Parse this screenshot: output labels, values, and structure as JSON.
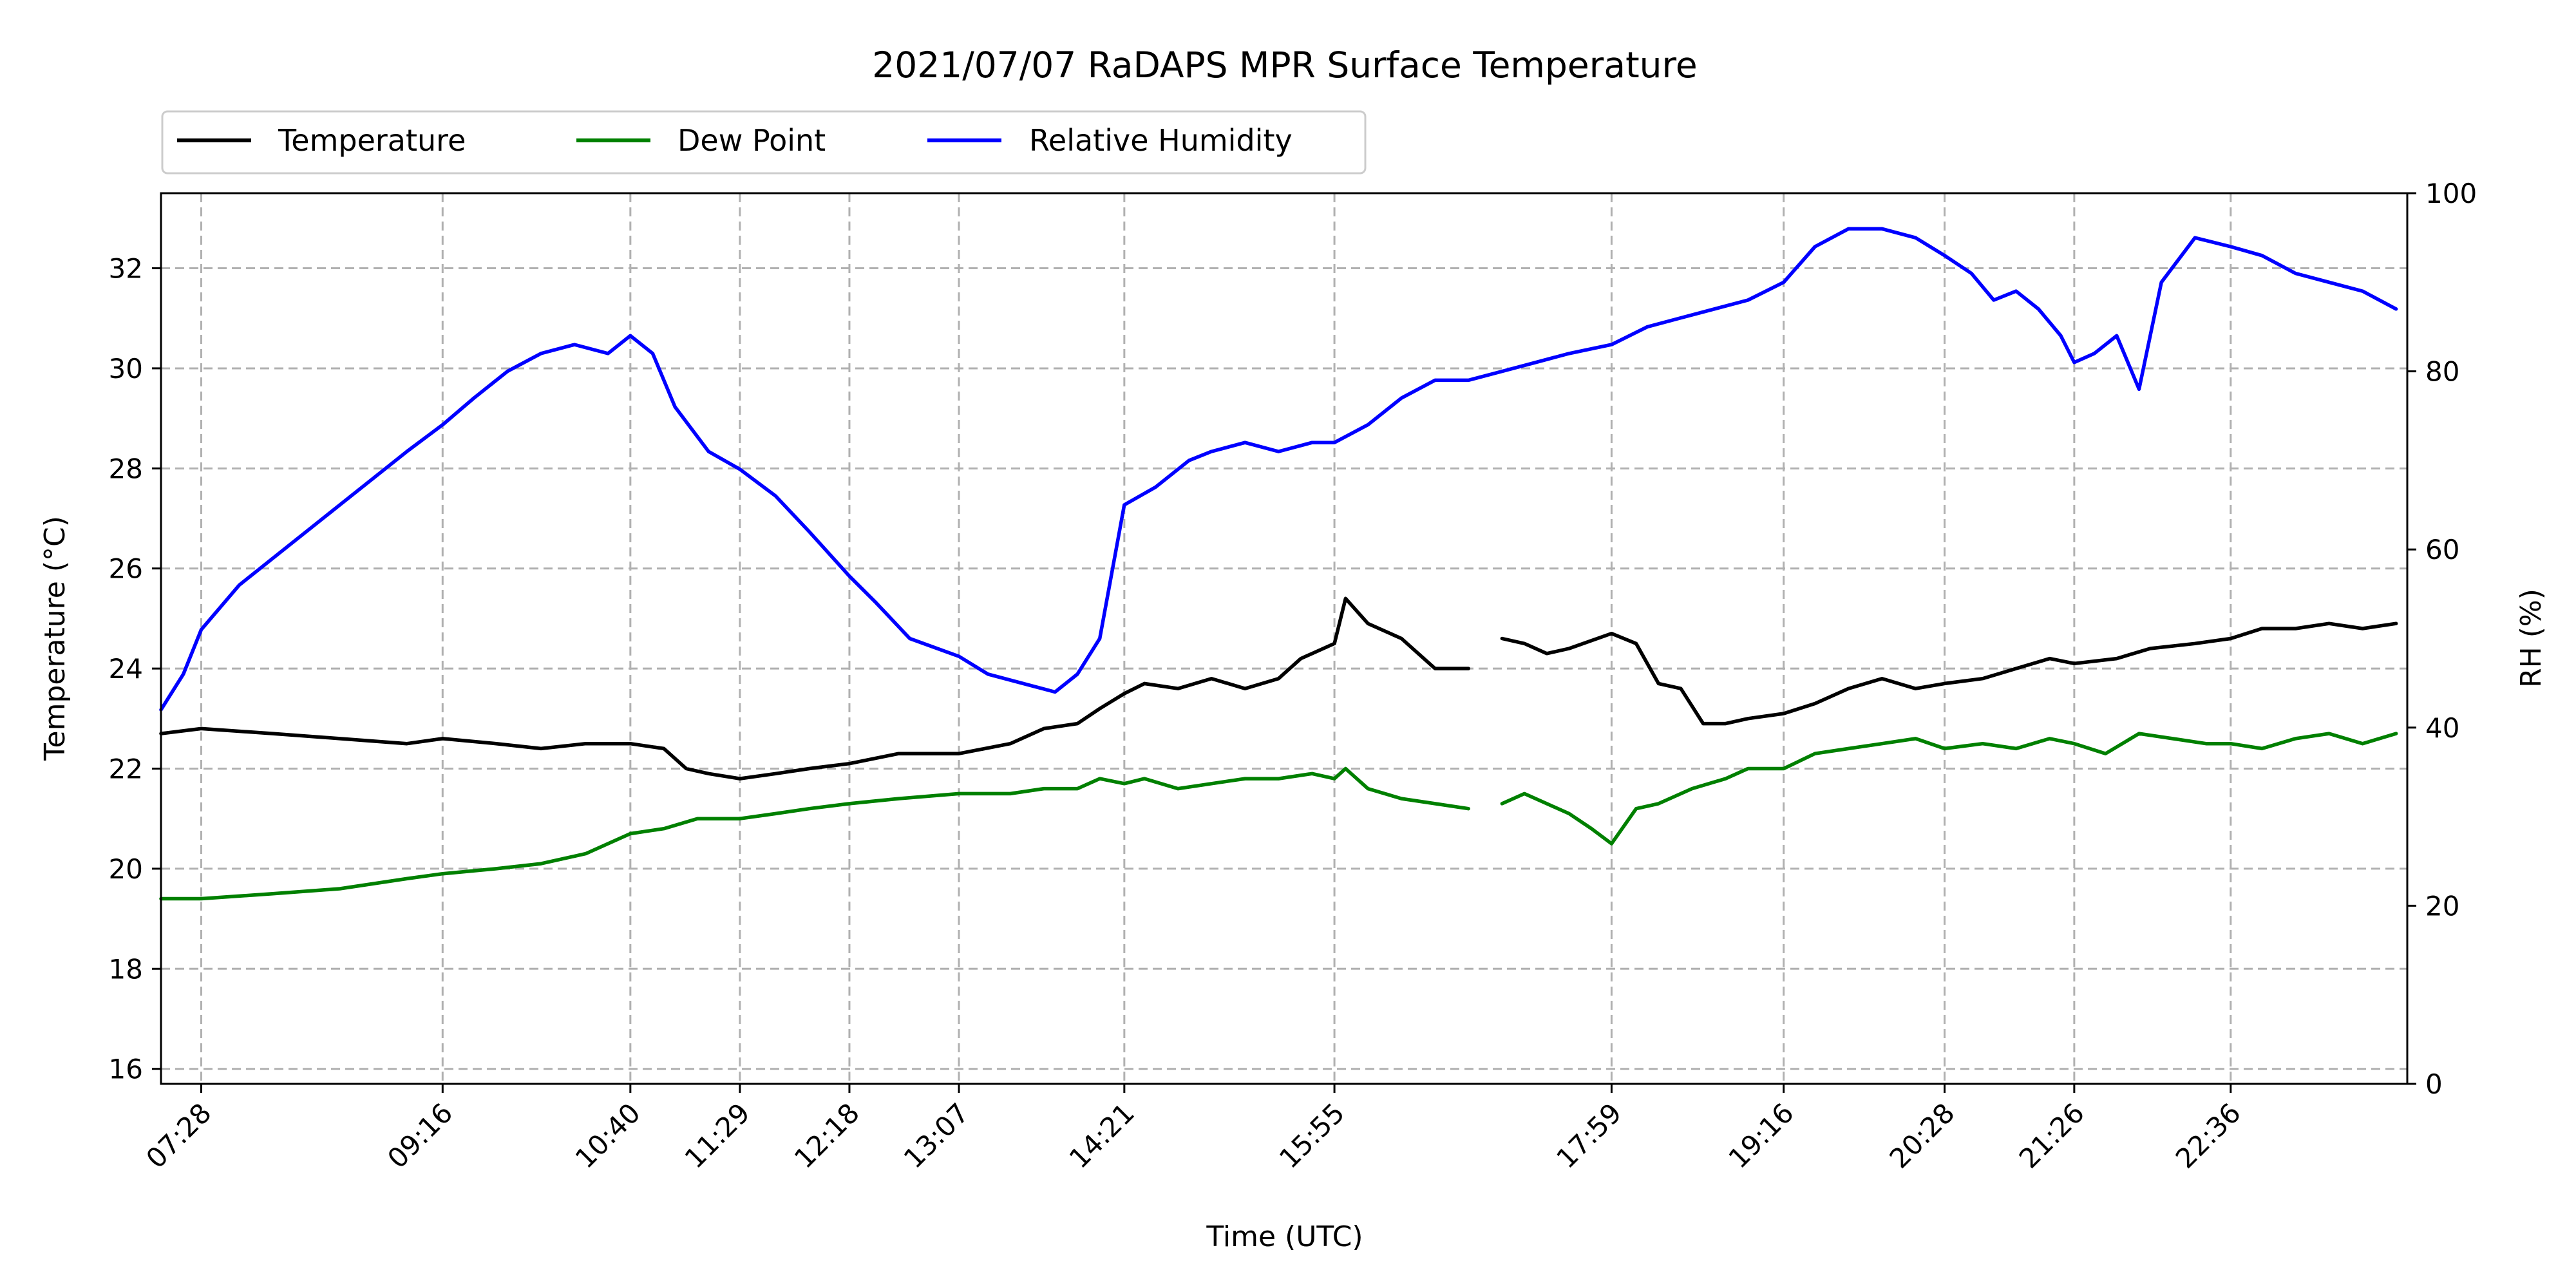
{
  "chart_data": {
    "type": "line",
    "title": "2021/07/07 RaDAPS MPR Surface Temperature",
    "xlabel": "Time (UTC)",
    "ylabel": "Temperature ($^\\circ$C)",
    "ylabel_display": "Temperature (°C)",
    "y2label": "RH (%)",
    "ylim": [
      15.7,
      33.5
    ],
    "y2lim": [
      0,
      100
    ],
    "xlim": [
      "07:10",
      "23:55"
    ],
    "x_ticks": [
      "07:28",
      "09:16",
      "10:40",
      "11:29",
      "12:18",
      "13:07",
      "14:21",
      "15:55",
      "17:59",
      "19:16",
      "20:28",
      "21:26",
      "22:36"
    ],
    "y_ticks": [
      16,
      18,
      20,
      22,
      24,
      26,
      28,
      30,
      32
    ],
    "y2_ticks": [
      0,
      20,
      40,
      60,
      80,
      100
    ],
    "grid": true,
    "legend_placement": "top-left, above plot",
    "series": [
      {
        "name": "Temperature",
        "axis": "left",
        "color": "#000000",
        "x": [
          "07:10",
          "07:28",
          "08:00",
          "08:30",
          "09:00",
          "09:16",
          "09:40",
          "10:00",
          "10:20",
          "10:40",
          "10:55",
          "11:05",
          "11:15",
          "11:29",
          "11:45",
          "12:00",
          "12:18",
          "12:40",
          "13:07",
          "13:30",
          "13:45",
          "14:00",
          "14:10",
          "14:21",
          "14:30",
          "14:45",
          "15:00",
          "15:15",
          "15:30",
          "15:40",
          "15:55",
          "16:00",
          "16:10",
          "16:25",
          "16:40",
          "16:55",
          null,
          "17:10",
          "17:20",
          "17:30",
          "17:40",
          "17:59",
          "18:10",
          "18:20",
          "18:30",
          "18:40",
          "18:50",
          "19:00",
          "19:16",
          "19:30",
          "19:45",
          "20:00",
          "20:15",
          "20:28",
          "20:45",
          "21:00",
          "21:15",
          "21:26",
          "21:45",
          "22:00",
          "22:20",
          "22:36",
          "22:50",
          "23:05",
          "23:20",
          "23:35",
          "23:50"
        ],
        "y": [
          22.7,
          22.8,
          22.7,
          22.6,
          22.5,
          22.6,
          22.5,
          22.4,
          22.5,
          22.5,
          22.4,
          22.0,
          21.9,
          21.8,
          21.9,
          22.0,
          22.1,
          22.3,
          22.3,
          22.5,
          22.8,
          22.9,
          23.2,
          23.5,
          23.7,
          23.6,
          23.8,
          23.6,
          23.8,
          24.2,
          24.5,
          25.4,
          24.9,
          24.6,
          24.0,
          24.0,
          null,
          24.6,
          24.5,
          24.3,
          24.4,
          24.7,
          24.5,
          23.7,
          23.6,
          22.9,
          22.9,
          23.0,
          23.1,
          23.3,
          23.6,
          23.8,
          23.6,
          23.7,
          23.8,
          24.0,
          24.2,
          24.1,
          24.2,
          24.4,
          24.5,
          24.6,
          24.8,
          24.8,
          24.9,
          24.8,
          24.9
        ]
      },
      {
        "name": "Dew Point",
        "axis": "left",
        "color": "#008000",
        "x": [
          "07:10",
          "07:28",
          "08:00",
          "08:30",
          "09:00",
          "09:16",
          "09:40",
          "10:00",
          "10:20",
          "10:40",
          "10:55",
          "11:10",
          "11:29",
          "11:45",
          "12:00",
          "12:18",
          "12:40",
          "13:07",
          "13:30",
          "13:45",
          "14:00",
          "14:10",
          "14:21",
          "14:30",
          "14:45",
          "15:00",
          "15:15",
          "15:30",
          "15:45",
          "15:55",
          "16:00",
          "16:10",
          "16:25",
          "16:40",
          "16:55",
          null,
          "17:10",
          "17:20",
          "17:30",
          "17:40",
          "17:50",
          "17:59",
          "18:10",
          "18:20",
          "18:35",
          "18:50",
          "19:00",
          "19:16",
          "19:30",
          "19:45",
          "20:00",
          "20:15",
          "20:28",
          "20:45",
          "21:00",
          "21:15",
          "21:26",
          "21:40",
          "21:55",
          "22:10",
          "22:25",
          "22:36",
          "22:50",
          "23:05",
          "23:20",
          "23:35",
          "23:50"
        ],
        "y": [
          19.4,
          19.4,
          19.5,
          19.6,
          19.8,
          19.9,
          20.0,
          20.1,
          20.3,
          20.7,
          20.8,
          21.0,
          21.0,
          21.1,
          21.2,
          21.3,
          21.4,
          21.5,
          21.5,
          21.6,
          21.6,
          21.8,
          21.7,
          21.8,
          21.6,
          21.7,
          21.8,
          21.8,
          21.9,
          21.8,
          22.0,
          21.6,
          21.4,
          21.3,
          21.2,
          null,
          21.3,
          21.5,
          21.3,
          21.1,
          20.8,
          20.5,
          21.2,
          21.3,
          21.6,
          21.8,
          22.0,
          22.0,
          22.3,
          22.4,
          22.5,
          22.6,
          22.4,
          22.5,
          22.4,
          22.6,
          22.5,
          22.3,
          22.7,
          22.6,
          22.5,
          22.5,
          22.4,
          22.6,
          22.7,
          22.5,
          22.7
        ]
      },
      {
        "name": "Relative Humidity",
        "axis": "right",
        "color": "#0000ff",
        "x": [
          "07:10",
          "07:20",
          "07:28",
          "07:45",
          "08:00",
          "08:15",
          "08:30",
          "08:45",
          "09:00",
          "09:16",
          "09:30",
          "09:45",
          "10:00",
          "10:15",
          "10:30",
          "10:40",
          "10:50",
          "11:00",
          "11:15",
          "11:29",
          "11:45",
          "12:00",
          "12:18",
          "12:30",
          "12:45",
          "13:07",
          "13:20",
          "13:35",
          "13:50",
          "14:00",
          "14:05",
          "14:10",
          "14:21",
          "14:35",
          "14:50",
          "15:00",
          "15:15",
          "15:30",
          "15:45",
          "15:55",
          "16:10",
          "16:25",
          "16:40",
          "16:55",
          "17:10",
          "17:25",
          "17:40",
          "17:59",
          "18:15",
          "18:30",
          "18:45",
          "19:00",
          "19:16",
          "19:30",
          "19:45",
          "20:00",
          "20:15",
          "20:28",
          "20:40",
          "20:50",
          "21:00",
          "21:10",
          "21:20",
          "21:26",
          "21:35",
          "21:45",
          "21:55",
          "22:05",
          "22:20",
          "22:36",
          "22:50",
          "23:05",
          "23:20",
          "23:35",
          "23:50"
        ],
        "y": [
          42,
          46,
          51,
          56,
          59,
          62,
          65,
          68,
          71,
          74,
          77,
          80,
          82,
          83,
          82,
          84,
          82,
          76,
          71,
          69,
          66,
          62,
          57,
          54,
          50,
          48,
          46,
          45,
          44,
          46,
          48,
          50,
          65,
          67,
          70,
          71,
          72,
          71,
          72,
          72,
          74,
          77,
          79,
          79,
          80,
          81,
          82,
          83,
          85,
          86,
          87,
          88,
          90,
          94,
          96,
          96,
          95,
          93,
          91,
          88,
          89,
          87,
          84,
          81,
          82,
          84,
          78,
          90,
          95,
          94,
          93,
          91,
          90,
          89,
          87
        ]
      }
    ]
  }
}
